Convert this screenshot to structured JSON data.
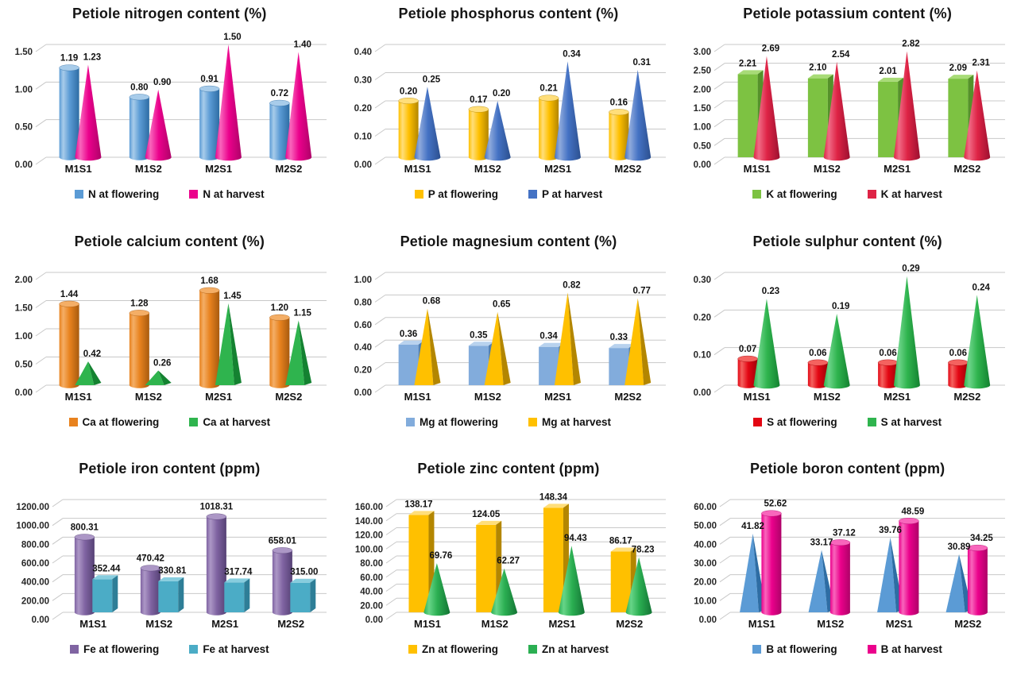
{
  "page": {
    "background": "#FFFFFF",
    "grid_rows": 3,
    "grid_cols": 3
  },
  "chart_data": [
    {
      "type": "bar",
      "title": "Petiole nitrogen content (%)",
      "categories": [
        "M1S1",
        "M1S2",
        "M2S1",
        "M2S2"
      ],
      "ylim": [
        0,
        1.5
      ],
      "ystep": 0.5,
      "tick_decimals": 2,
      "grid": true,
      "legend_position": "bottom",
      "series": [
        {
          "name": "N at flowering",
          "shape": "cylinder",
          "values": [
            1.19,
            0.8,
            0.91,
            0.72
          ],
          "colors": {
            "front": "#5B9BD5",
            "light": "#A8CCEA",
            "dark": "#2E6DA4"
          }
        },
        {
          "name": "N at harvest",
          "shape": "cone",
          "values": [
            1.23,
            0.9,
            1.5,
            1.4
          ],
          "colors": {
            "front": "#EB018C",
            "light": "#F866BC",
            "dark": "#AE0268"
          }
        }
      ]
    },
    {
      "type": "bar",
      "title": "Petiole phosphorus content (%)",
      "categories": [
        "M1S1",
        "M1S2",
        "M2S1",
        "M2S2"
      ],
      "ylim": [
        0,
        0.4
      ],
      "ystep": 0.1,
      "tick_decimals": 2,
      "grid": true,
      "legend_position": "bottom",
      "series": [
        {
          "name": "P at flowering",
          "shape": "cylinder",
          "values": [
            0.2,
            0.17,
            0.21,
            0.16
          ],
          "colors": {
            "front": "#FFC000",
            "light": "#FFDE7A",
            "dark": "#B38600"
          }
        },
        {
          "name": "P at harvest",
          "shape": "cone",
          "values": [
            0.25,
            0.2,
            0.34,
            0.31
          ],
          "colors": {
            "front": "#4472C4",
            "light": "#8FAADC",
            "dark": "#2C508F"
          }
        }
      ]
    },
    {
      "type": "bar",
      "title": "Petiole potassium content (%)",
      "categories": [
        "M1S1",
        "M1S2",
        "M2S1",
        "M2S2"
      ],
      "ylim": [
        0,
        3.0
      ],
      "ystep": 0.5,
      "tick_decimals": 2,
      "grid": true,
      "legend_position": "bottom",
      "series": [
        {
          "name": "K at flowering",
          "shape": "box",
          "values": [
            2.21,
            2.1,
            2.01,
            2.09
          ],
          "colors": {
            "front": "#7DC242",
            "light": "#A8DB77",
            "dark": "#55922A"
          }
        },
        {
          "name": "K at harvest",
          "shape": "cone",
          "values": [
            2.69,
            2.54,
            2.82,
            2.31
          ],
          "colors": {
            "front": "#DE2345",
            "light": "#F06A85",
            "dark": "#9C1130"
          }
        }
      ]
    },
    {
      "type": "bar",
      "title": "Petiole calcium content (%)",
      "categories": [
        "M1S1",
        "M1S2",
        "M2S1",
        "M2S2"
      ],
      "ylim": [
        0,
        2.0
      ],
      "ystep": 0.5,
      "tick_decimals": 2,
      "grid": true,
      "legend_position": "bottom",
      "series": [
        {
          "name": "Ca at flowering",
          "shape": "cylinder",
          "values": [
            1.44,
            1.28,
            1.68,
            1.2
          ],
          "colors": {
            "front": "#E8821E",
            "light": "#F4AE66",
            "dark": "#A85B0F"
          }
        },
        {
          "name": "Ca at harvest",
          "shape": "pyramid",
          "values": [
            0.42,
            0.26,
            1.45,
            1.15
          ],
          "colors": {
            "front": "#2FB44E",
            "light": "#6CD489",
            "dark": "#148231"
          }
        }
      ]
    },
    {
      "type": "bar",
      "title": "Petiole magnesium content (%)",
      "categories": [
        "M1S1",
        "M1S2",
        "M2S1",
        "M2S2"
      ],
      "ylim": [
        0,
        1.0
      ],
      "ystep": 0.2,
      "tick_decimals": 2,
      "grid": true,
      "legend_position": "bottom",
      "series": [
        {
          "name": "Mg at flowering",
          "shape": "box",
          "values": [
            0.36,
            0.35,
            0.34,
            0.33
          ],
          "colors": {
            "front": "#82ACDC",
            "light": "#B8D2EE",
            "dark": "#5180B4"
          }
        },
        {
          "name": "Mg at harvest",
          "shape": "pyramid",
          "values": [
            0.68,
            0.65,
            0.82,
            0.77
          ],
          "colors": {
            "front": "#FFC000",
            "light": "#FFDE7A",
            "dark": "#B38600"
          }
        }
      ]
    },
    {
      "type": "bar",
      "title": "Petiole sulphur content (%)",
      "categories": [
        "M1S1",
        "M1S2",
        "M2S1",
        "M2S2"
      ],
      "ylim": [
        0,
        0.3
      ],
      "ystep": 0.1,
      "tick_decimals": 2,
      "grid": true,
      "legend_position": "bottom",
      "series": [
        {
          "name": "S at flowering",
          "shape": "cylinder",
          "values": [
            0.07,
            0.06,
            0.06,
            0.06
          ],
          "colors": {
            "front": "#E30613",
            "light": "#F4625F",
            "dark": "#9E0008"
          }
        },
        {
          "name": "S at harvest",
          "shape": "cone",
          "values": [
            0.23,
            0.19,
            0.29,
            0.24
          ],
          "colors": {
            "front": "#2FB44E",
            "light": "#6CD489",
            "dark": "#148231"
          }
        }
      ]
    },
    {
      "type": "bar",
      "title": "Petiole iron content (ppm)",
      "categories": [
        "M1S1",
        "M1S2",
        "M2S1",
        "M2S2"
      ],
      "ylim": [
        0,
        1200
      ],
      "ystep": 200,
      "tick_decimals": 2,
      "grid": true,
      "legend_position": "bottom",
      "series": [
        {
          "name": "Fe at flowering",
          "shape": "cylinder",
          "values": [
            800.31,
            470.42,
            1018.31,
            658.01
          ],
          "colors": {
            "front": "#8064A2",
            "light": "#AC97C6",
            "dark": "#564175"
          }
        },
        {
          "name": "Fe at harvest",
          "shape": "box",
          "values": [
            352.44,
            330.81,
            317.74,
            315.0
          ],
          "colors": {
            "front": "#4BACC6",
            "light": "#87CDDE",
            "dark": "#2E7E97"
          }
        }
      ]
    },
    {
      "type": "bar",
      "title": "Petiole zinc content (ppm)",
      "categories": [
        "M1S1",
        "M1S2",
        "M2S1",
        "M2S2"
      ],
      "ylim": [
        0,
        160
      ],
      "ystep": 20,
      "tick_decimals": 2,
      "grid": true,
      "legend_position": "bottom",
      "series": [
        {
          "name": "Zn at flowering",
          "shape": "box",
          "values": [
            138.17,
            124.05,
            148.34,
            86.17
          ],
          "colors": {
            "front": "#FFC000",
            "light": "#FFDE7A",
            "dark": "#B38600"
          }
        },
        {
          "name": "Zn at harvest",
          "shape": "cone",
          "values": [
            69.76,
            62.27,
            94.43,
            78.23
          ],
          "colors": {
            "front": "#2BAF52",
            "light": "#67D588",
            "dark": "#137434"
          }
        }
      ]
    },
    {
      "type": "bar",
      "title": "Petiole boron content (ppm)",
      "categories": [
        "M1S1",
        "M1S2",
        "M2S1",
        "M2S2"
      ],
      "ylim": [
        0,
        60
      ],
      "ystep": 10,
      "tick_decimals": 2,
      "grid": true,
      "legend_position": "bottom",
      "series": [
        {
          "name": "B at flowering",
          "shape": "pyramid",
          "values": [
            41.82,
            33.17,
            39.76,
            30.89
          ],
          "colors": {
            "front": "#5B9BD5",
            "light": "#A8CCEA",
            "dark": "#2E6DA4"
          }
        },
        {
          "name": "B at harvest",
          "shape": "cylinder",
          "values": [
            52.62,
            37.12,
            48.59,
            34.25
          ],
          "colors": {
            "front": "#EB018C",
            "light": "#F866BC",
            "dark": "#AE0268"
          }
        }
      ]
    }
  ]
}
